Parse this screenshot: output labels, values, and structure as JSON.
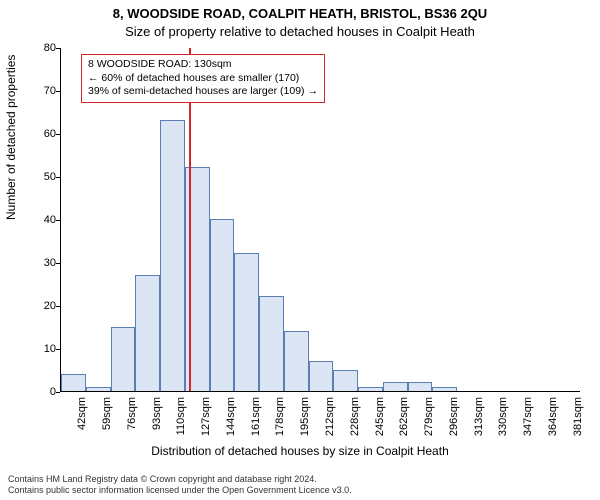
{
  "titles": {
    "line1": "8, WOODSIDE ROAD, COALPIT HEATH, BRISTOL, BS36 2QU",
    "line2": "Size of property relative to detached houses in Coalpit Heath"
  },
  "chart": {
    "type": "histogram",
    "ylabel": "Number of detached properties",
    "xlabel": "Distribution of detached houses by size in Coalpit Heath",
    "ylim": [
      0,
      80
    ],
    "ytick_step": 10,
    "background_color": "#ffffff",
    "bar_fill": "#dbe5f4",
    "bar_stroke": "#5b7fb5",
    "bar_stroke_width": 1,
    "axis_color": "#000000",
    "x_categories": [
      "42sqm",
      "59sqm",
      "76sqm",
      "93sqm",
      "110sqm",
      "127sqm",
      "144sqm",
      "161sqm",
      "178sqm",
      "195sqm",
      "212sqm",
      "228sqm",
      "245sqm",
      "262sqm",
      "279sqm",
      "296sqm",
      "313sqm",
      "330sqm",
      "347sqm",
      "364sqm",
      "381sqm"
    ],
    "values": [
      4,
      1,
      15,
      27,
      63,
      52,
      40,
      32,
      22,
      14,
      7,
      5,
      1,
      2,
      2,
      1,
      0,
      0,
      0,
      0,
      0
    ],
    "vline": {
      "color": "#d62728",
      "width": 2,
      "x_index_after": 5,
      "fraction_into_slot": 0.18
    }
  },
  "annotation": {
    "border_color": "#d62728",
    "lines": [
      "8 WOODSIDE ROAD: 130sqm",
      "← 60% of detached houses are smaller (170)",
      "39% of semi-detached houses are larger (109) →"
    ]
  },
  "footer": {
    "line1": "Contains HM Land Registry data © Crown copyright and database right 2024.",
    "line2": "Contains public sector information licensed under the Open Government Licence v3.0."
  },
  "tick_fontsize": 11,
  "label_fontsize": 12,
  "title_fontsize": 13
}
